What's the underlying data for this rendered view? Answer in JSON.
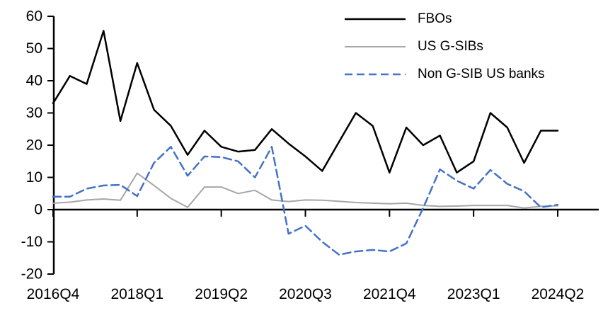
{
  "chart_data": {
    "type": "line",
    "title": "",
    "xlabel": "",
    "ylabel": "",
    "grid": false,
    "legend_position": "top-right",
    "axis_color": "#000000",
    "ylim": [
      -20,
      60
    ],
    "y_ticks": [
      60,
      50,
      40,
      30,
      20,
      10,
      0,
      -10,
      -20
    ],
    "x_tick_indices": [
      0,
      5,
      10,
      15,
      20,
      25,
      30
    ],
    "x_tick_labels": [
      "2016Q4",
      "2018Q1",
      "2019Q2",
      "2020Q3",
      "2021Q4",
      "2023Q1",
      "2024Q2"
    ],
    "categories": [
      "2016Q4",
      "2017Q1",
      "2017Q2",
      "2017Q3",
      "2017Q4",
      "2018Q1",
      "2018Q2",
      "2018Q3",
      "2018Q4",
      "2019Q1",
      "2019Q2",
      "2019Q3",
      "2019Q4",
      "2020Q1",
      "2020Q2",
      "2020Q3",
      "2020Q4",
      "2021Q1",
      "2021Q2",
      "2021Q3",
      "2021Q4",
      "2022Q1",
      "2022Q2",
      "2022Q3",
      "2022Q4",
      "2023Q1",
      "2023Q2",
      "2023Q3",
      "2023Q4",
      "2024Q1",
      "2024Q2"
    ],
    "series": [
      {
        "name": "FBOs",
        "color": "#000000",
        "style": "solid",
        "width": 2.5,
        "values": [
          33,
          41.5,
          39,
          55.5,
          27.5,
          45.5,
          31,
          26,
          17,
          24.5,
          19.5,
          18,
          18.5,
          25,
          20.5,
          16.5,
          12,
          21,
          30,
          26,
          11.5,
          25.5,
          20,
          23,
          11.5,
          15,
          30,
          25.5,
          14.5,
          24.5,
          24.5
        ]
      },
      {
        "name": "US G-SIBs",
        "color": "#A6A6A6",
        "style": "solid",
        "width": 2,
        "values": [
          2,
          2.3,
          3,
          3.3,
          2.9,
          11.3,
          7.5,
          3.5,
          0.7,
          7,
          7,
          5,
          6,
          3,
          2.5,
          3,
          2.9,
          2.6,
          2.2,
          2,
          1.8,
          2,
          1.3,
          1,
          1.1,
          1.3,
          1.3,
          1.3,
          0.5,
          1,
          1.2
        ]
      },
      {
        "name": "Non G-SIB US banks",
        "color": "#4472C4",
        "style": "dashed",
        "width": 2.5,
        "values": [
          4,
          4,
          6.5,
          7.5,
          7.7,
          4.2,
          14.5,
          19.5,
          10.5,
          16.5,
          16.3,
          15,
          10,
          19.5,
          -7.5,
          -5,
          -10,
          -14,
          -13,
          -12.5,
          -13,
          -10.5,
          0.5,
          12.5,
          9,
          6.5,
          12.3,
          8,
          5.7,
          0.7,
          1.5
        ]
      }
    ]
  }
}
